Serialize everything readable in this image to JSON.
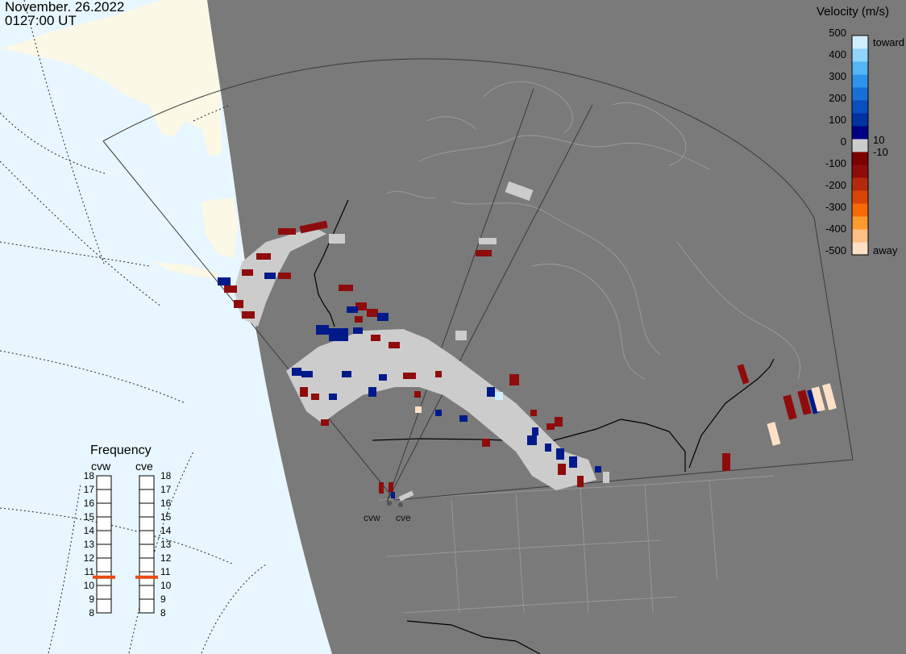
{
  "header": {
    "date": "November. 26.2022",
    "time": "0127:00 UT"
  },
  "legend": {
    "title": "Velocity (m/s)",
    "ticks": [
      "500",
      "400",
      "300",
      "200",
      "100",
      "0",
      "-100",
      "-200",
      "-300",
      "-400",
      "-500"
    ],
    "toward_label": "toward",
    "away_label": "away",
    "pos_threshold": "10",
    "neg_threshold": "-10",
    "colors": [
      "#fde0c5",
      "#fcbf85",
      "#fb9a2e",
      "#f56a05",
      "#d94408",
      "#b52a0c",
      "#8f0c0c",
      "#7b0000",
      "#cccccc",
      "#000080",
      "#0033a0",
      "#0a4ebf",
      "#1a6fd6",
      "#2e93ea",
      "#55b5f5",
      "#8fd4fb",
      "#cfeefe"
    ]
  },
  "frequency": {
    "title": "Frequency",
    "radars": [
      {
        "name": "cvw",
        "freq_mhz": 10.6
      },
      {
        "name": "cve",
        "freq_mhz": 10.6
      }
    ],
    "scale": [
      "18",
      "17",
      "16",
      "15",
      "14",
      "13",
      "12",
      "11",
      "10",
      "9",
      "8"
    ],
    "marker_color": "#e84a14"
  },
  "sites": {
    "west": "cvw",
    "east": "cve"
  },
  "colors": {
    "night": "#7a7a7a",
    "ocean": "#e8f6ff",
    "land_day": "#fcf8e6",
    "scatter_ground": "#cccccc"
  }
}
